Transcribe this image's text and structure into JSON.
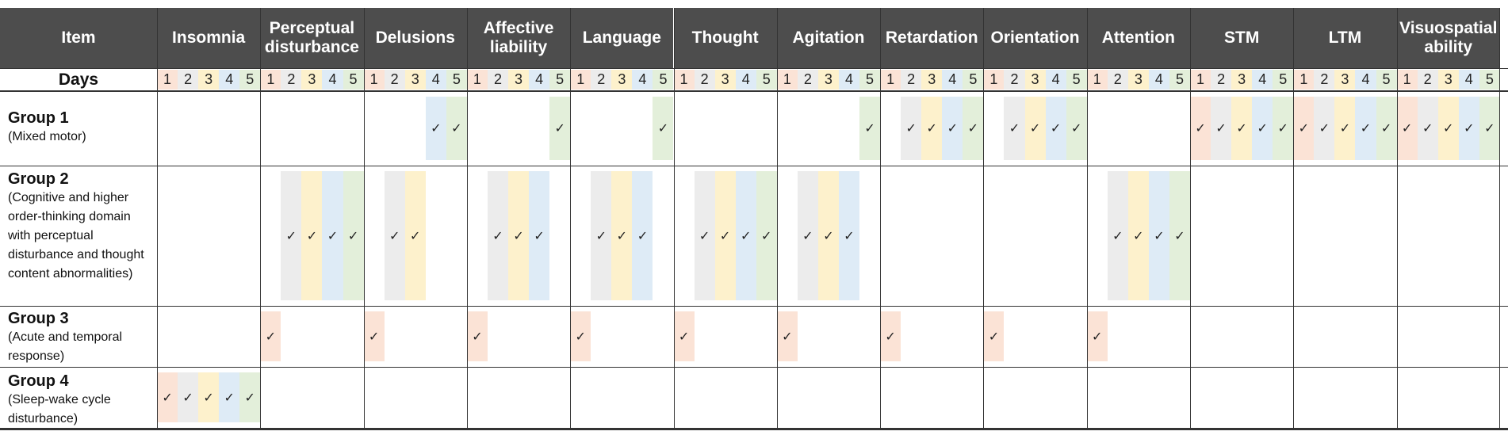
{
  "header": {
    "item_label": "Item",
    "days_label": "Days"
  },
  "colors": {
    "day1": "#fbe3d6",
    "day2": "#ececec",
    "day3": "#fdf1cc",
    "day4": "#deebf6",
    "day5": "#e3efda",
    "header_bg": "#4d4d4d"
  },
  "checkmark": "✓",
  "columns": [
    {
      "label": "Insomnia",
      "days": [
        "1",
        "2",
        "3",
        "4",
        "5"
      ]
    },
    {
      "label": "Perceptual disturbance",
      "days": [
        "1",
        "2",
        "3",
        "4",
        "5"
      ]
    },
    {
      "label": "Delusions",
      "days": [
        "1",
        "2",
        "3",
        "4",
        "5"
      ]
    },
    {
      "label": "Affective liability",
      "days": [
        "1",
        "2",
        "3",
        "4",
        "5"
      ]
    },
    {
      "label": "Language",
      "days": [
        "1",
        "2",
        "3",
        "4",
        "5"
      ]
    },
    {
      "label": "Thought",
      "days": [
        "1",
        "2",
        "3",
        "4",
        "5"
      ]
    },
    {
      "label": "Agitation",
      "days": [
        "1",
        "2",
        "3",
        "4",
        "5"
      ]
    },
    {
      "label": "Retardation",
      "days": [
        "1",
        "2",
        "3",
        "4",
        "5"
      ]
    },
    {
      "label": "Orientation",
      "days": [
        "1",
        "2",
        "3",
        "4",
        "5"
      ]
    },
    {
      "label": "Attention",
      "days": [
        "1",
        "2",
        "3",
        "4",
        "5"
      ]
    },
    {
      "label": "STM",
      "days": [
        "1",
        "2",
        "3",
        "4",
        "5"
      ]
    },
    {
      "label": "LTM",
      "days": [
        "1",
        "2",
        "3",
        "4",
        "5"
      ]
    },
    {
      "label": "Visuospatial ability",
      "days": [
        "1",
        "2",
        "3",
        "4",
        "5"
      ]
    }
  ],
  "groups": [
    {
      "name": "Group 1",
      "description": "(Mixed motor)",
      "checks": [
        [],
        [],
        [
          4,
          5
        ],
        [
          5
        ],
        [
          5
        ],
        [],
        [
          5
        ],
        [
          2,
          3,
          4,
          5
        ],
        [
          2,
          3,
          4,
          5
        ],
        [],
        [
          1,
          2,
          3,
          4,
          5
        ],
        [
          1,
          2,
          3,
          4,
          5
        ],
        [
          1,
          2,
          3,
          4,
          5
        ]
      ]
    },
    {
      "name": "Group 2",
      "description": "(Cognitive and higher order-thinking domain with perceptual disturbance and thought content abnormalities)",
      "checks": [
        [],
        [
          2,
          3,
          4,
          5
        ],
        [
          2,
          3
        ],
        [
          2,
          3,
          4
        ],
        [
          2,
          3,
          4
        ],
        [
          2,
          3,
          4,
          5
        ],
        [
          2,
          3,
          4
        ],
        [],
        [],
        [
          2,
          3,
          4,
          5
        ],
        [],
        [],
        []
      ]
    },
    {
      "name": "Group 3",
      "description": "(Acute and temporal response)",
      "checks": [
        [],
        [
          1
        ],
        [
          1
        ],
        [
          1
        ],
        [
          1
        ],
        [
          1
        ],
        [
          1
        ],
        [
          1
        ],
        [
          1
        ],
        [
          1
        ],
        [],
        [],
        []
      ]
    },
    {
      "name": "Group 4",
      "description": "(Sleep-wake cycle disturbance)",
      "checks": [
        [
          1,
          2,
          3,
          4,
          5
        ],
        [],
        [],
        [],
        [],
        [],
        [],
        [],
        [],
        [],
        [],
        [],
        []
      ]
    }
  ]
}
